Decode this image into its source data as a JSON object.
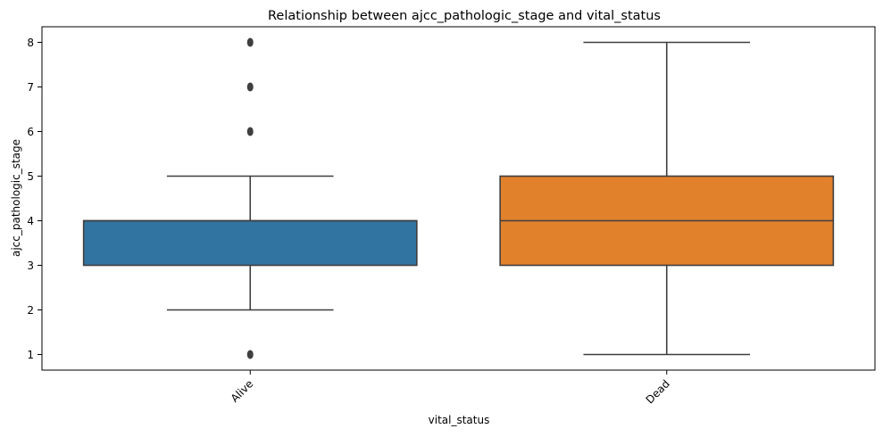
{
  "chart_data": {
    "type": "box",
    "title": "Relationship between ajcc_pathologic_stage and vital_status",
    "xlabel": "vital_status",
    "ylabel": "ajcc_pathologic_stage",
    "ylim": [
      0.65,
      8.35
    ],
    "yticks": [
      1,
      2,
      3,
      4,
      5,
      6,
      7,
      8
    ],
    "grid": false,
    "categories": [
      "Alive",
      "Dead"
    ],
    "boxes": [
      {
        "name": "Alive",
        "color": "#3274a1",
        "q1": 3,
        "median": 4,
        "q3": 4,
        "whisker_low": 2,
        "whisker_high": 5,
        "outliers": [
          1,
          6,
          7,
          8
        ]
      },
      {
        "name": "Dead",
        "color": "#e1812c",
        "q1": 3,
        "median": 4,
        "q3": 5,
        "whisker_low": 1,
        "whisker_high": 8,
        "outliers": []
      }
    ]
  }
}
